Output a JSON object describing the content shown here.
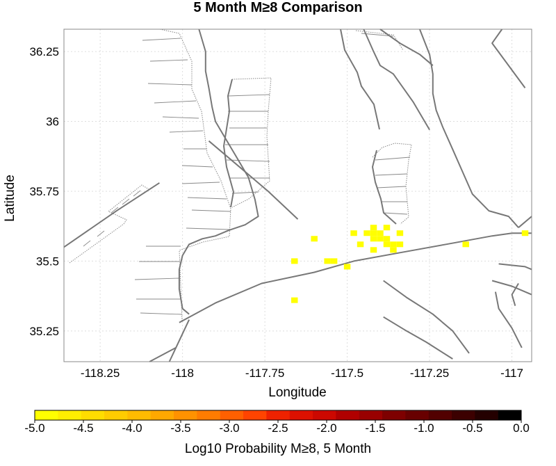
{
  "chart_data": {
    "type": "heatmap",
    "title": "5 Month M≥8 Comparison",
    "xlabel": "Longitude",
    "ylabel": "Latitude",
    "xlim": [
      -118.36,
      -116.94
    ],
    "ylim": [
      35.14,
      36.33
    ],
    "xticks": [
      {
        "value": -118.25,
        "label": "-118.25"
      },
      {
        "value": -118.0,
        "label": "-118"
      },
      {
        "value": -117.75,
        "label": "-117.75"
      },
      {
        "value": -117.5,
        "label": "-117.5"
      },
      {
        "value": -117.25,
        "label": "-117.25"
      },
      {
        "value": -117.0,
        "label": "-117"
      }
    ],
    "yticks": [
      {
        "value": 35.25,
        "label": "35.25"
      },
      {
        "value": 35.5,
        "label": "35.5"
      },
      {
        "value": 35.75,
        "label": "35.75"
      },
      {
        "value": 36.0,
        "label": "36"
      },
      {
        "value": 36.25,
        "label": "36.25"
      }
    ],
    "grid": true,
    "cell_size_deg": 0.02,
    "cells": [
      {
        "lon": -117.42,
        "lat": 35.62,
        "log10p": -5.0
      },
      {
        "lon": -117.44,
        "lat": 35.6,
        "log10p": -5.0
      },
      {
        "lon": -117.42,
        "lat": 35.6,
        "log10p": -5.0
      },
      {
        "lon": -117.4,
        "lat": 35.6,
        "log10p": -5.0
      },
      {
        "lon": -117.48,
        "lat": 35.6,
        "log10p": -5.0
      },
      {
        "lon": -117.38,
        "lat": 35.62,
        "log10p": -5.0
      },
      {
        "lon": -117.34,
        "lat": 35.6,
        "log10p": -5.0
      },
      {
        "lon": -117.42,
        "lat": 35.58,
        "log10p": -5.0
      },
      {
        "lon": -117.4,
        "lat": 35.58,
        "log10p": -5.0
      },
      {
        "lon": -117.38,
        "lat": 35.58,
        "log10p": -5.0
      },
      {
        "lon": -117.46,
        "lat": 35.56,
        "log10p": -5.0
      },
      {
        "lon": -117.38,
        "lat": 35.56,
        "log10p": -5.0
      },
      {
        "lon": -117.36,
        "lat": 35.56,
        "log10p": -5.0
      },
      {
        "lon": -117.34,
        "lat": 35.56,
        "log10p": -5.0
      },
      {
        "lon": -117.42,
        "lat": 35.54,
        "log10p": -5.0
      },
      {
        "lon": -117.36,
        "lat": 35.54,
        "log10p": -5.0
      },
      {
        "lon": -117.6,
        "lat": 35.58,
        "log10p": -5.0
      },
      {
        "lon": -117.14,
        "lat": 35.56,
        "log10p": -5.0
      },
      {
        "lon": -116.96,
        "lat": 35.6,
        "log10p": -5.0
      },
      {
        "lon": -117.66,
        "lat": 35.5,
        "log10p": -5.0
      },
      {
        "lon": -117.56,
        "lat": 35.5,
        "log10p": -5.0
      },
      {
        "lon": -117.54,
        "lat": 35.5,
        "log10p": -5.0
      },
      {
        "lon": -117.5,
        "lat": 35.48,
        "log10p": -5.0
      },
      {
        "lon": -117.66,
        "lat": 35.36,
        "log10p": -5.0
      }
    ],
    "faults": [
      [
        [
          -118.36,
          35.55
        ],
        [
          -118.2,
          35.68
        ],
        [
          -118.07,
          35.78
        ]
      ],
      [
        [
          -117.98,
          35.29
        ],
        [
          -118.04,
          35.14
        ]
      ],
      [
        [
          -118.1,
          35.14
        ],
        [
          -118.02,
          35.19
        ]
      ],
      [
        [
          -118.01,
          35.28
        ],
        [
          -117.9,
          35.35
        ],
        [
          -117.76,
          35.42
        ],
        [
          -117.6,
          35.46
        ],
        [
          -117.48,
          35.5
        ],
        [
          -117.34,
          35.53
        ],
        [
          -117.2,
          35.56
        ],
        [
          -117.06,
          35.59
        ],
        [
          -117.0,
          35.6
        ],
        [
          -116.94,
          35.6
        ]
      ],
      [
        [
          -117.92,
          35.93
        ],
        [
          -117.82,
          35.83
        ],
        [
          -117.74,
          35.75
        ],
        [
          -117.65,
          35.65
        ]
      ],
      [
        [
          -117.95,
          36.33
        ],
        [
          -117.93,
          36.25
        ],
        [
          -117.93,
          36.18
        ],
        [
          -117.92,
          36.12
        ],
        [
          -117.91,
          36.05
        ],
        [
          -117.9,
          36.0
        ],
        [
          -117.87,
          35.94
        ],
        [
          -117.84,
          35.88
        ],
        [
          -117.8,
          35.8
        ],
        [
          -117.78,
          35.72
        ],
        [
          -117.77,
          35.66
        ],
        [
          -117.81,
          35.63
        ],
        [
          -117.86,
          35.61
        ],
        [
          -117.9,
          35.59
        ],
        [
          -117.94,
          35.58
        ],
        [
          -117.98,
          35.56
        ],
        [
          -118.0,
          35.52
        ],
        [
          -118.01,
          35.47
        ],
        [
          -118.01,
          35.4
        ],
        [
          -118.0,
          35.33
        ],
        [
          -117.98,
          35.31
        ]
      ],
      [
        [
          -117.45,
          36.33
        ],
        [
          -117.42,
          36.25
        ],
        [
          -117.4,
          36.2
        ],
        [
          -117.36,
          36.17
        ],
        [
          -117.33,
          36.12
        ],
        [
          -117.3,
          36.07
        ],
        [
          -117.27,
          36.01
        ],
        [
          -117.25,
          35.97
        ]
      ],
      [
        [
          -117.4,
          36.33
        ],
        [
          -117.34,
          36.28
        ],
        [
          -117.28,
          36.24
        ],
        [
          -117.24,
          36.2
        ]
      ],
      [
        [
          -117.28,
          36.33
        ],
        [
          -117.25,
          36.24
        ],
        [
          -117.24,
          36.17
        ],
        [
          -117.24,
          36.1
        ],
        [
          -117.23,
          36.04
        ],
        [
          -117.21,
          35.98
        ],
        [
          -117.18,
          35.9
        ],
        [
          -117.15,
          35.82
        ],
        [
          -117.12,
          35.74
        ],
        [
          -117.07,
          35.68
        ],
        [
          -117.01,
          35.66
        ],
        [
          -116.98,
          35.62
        ]
      ],
      [
        [
          -117.39,
          35.43
        ],
        [
          -117.32,
          35.37
        ],
        [
          -117.24,
          35.31
        ],
        [
          -117.18,
          35.25
        ],
        [
          -117.13,
          35.17
        ]
      ],
      [
        [
          -117.39,
          35.3
        ],
        [
          -117.32,
          35.25
        ],
        [
          -117.26,
          35.21
        ],
        [
          -117.18,
          35.15
        ]
      ],
      [
        [
          -116.99,
          35.34
        ],
        [
          -117.0,
          35.38
        ],
        [
          -116.98,
          35.42
        ]
      ],
      [
        [
          -117.05,
          35.39
        ],
        [
          -117.04,
          35.33
        ],
        [
          -117.0,
          35.26
        ],
        [
          -116.97,
          35.19
        ]
      ],
      [
        [
          -117.04,
          35.49
        ],
        [
          -116.96,
          35.48
        ],
        [
          -116.94,
          35.47
        ]
      ],
      [
        [
          -117.06,
          35.43
        ],
        [
          -117.0,
          35.41
        ],
        [
          -116.94,
          35.38
        ]
      ],
      [
        [
          -116.98,
          35.62
        ],
        [
          -116.94,
          35.66
        ]
      ],
      [
        [
          -117.03,
          36.33
        ],
        [
          -117.06,
          36.28
        ],
        [
          -116.96,
          36.12
        ]
      ]
    ],
    "colorbar": {
      "label": "Log10 Probability M≥8, 5 Month",
      "range": [
        -5.0,
        0.0
      ],
      "ticks": [
        "-5.0",
        "-4.5",
        "-4.0",
        "-3.5",
        "-3.0",
        "-2.5",
        "-2.0",
        "-1.5",
        "-1.0",
        "-0.5",
        "0.0"
      ],
      "steps": [
        "#ffff00",
        "#ffee00",
        "#ffdd00",
        "#ffcc00",
        "#ffbb00",
        "#ffa800",
        "#ff9200",
        "#ff7c00",
        "#ff6000",
        "#ff4400",
        "#ee2200",
        "#dd1100",
        "#cc0800",
        "#b00000",
        "#990000",
        "#7e0000",
        "#680000",
        "#520000",
        "#3c0000",
        "#240000",
        "#000000"
      ]
    }
  },
  "colors": {
    "fault": "#777777",
    "fault_dotted": "#888888",
    "grid": "#dddddd",
    "frame": "#888888"
  }
}
